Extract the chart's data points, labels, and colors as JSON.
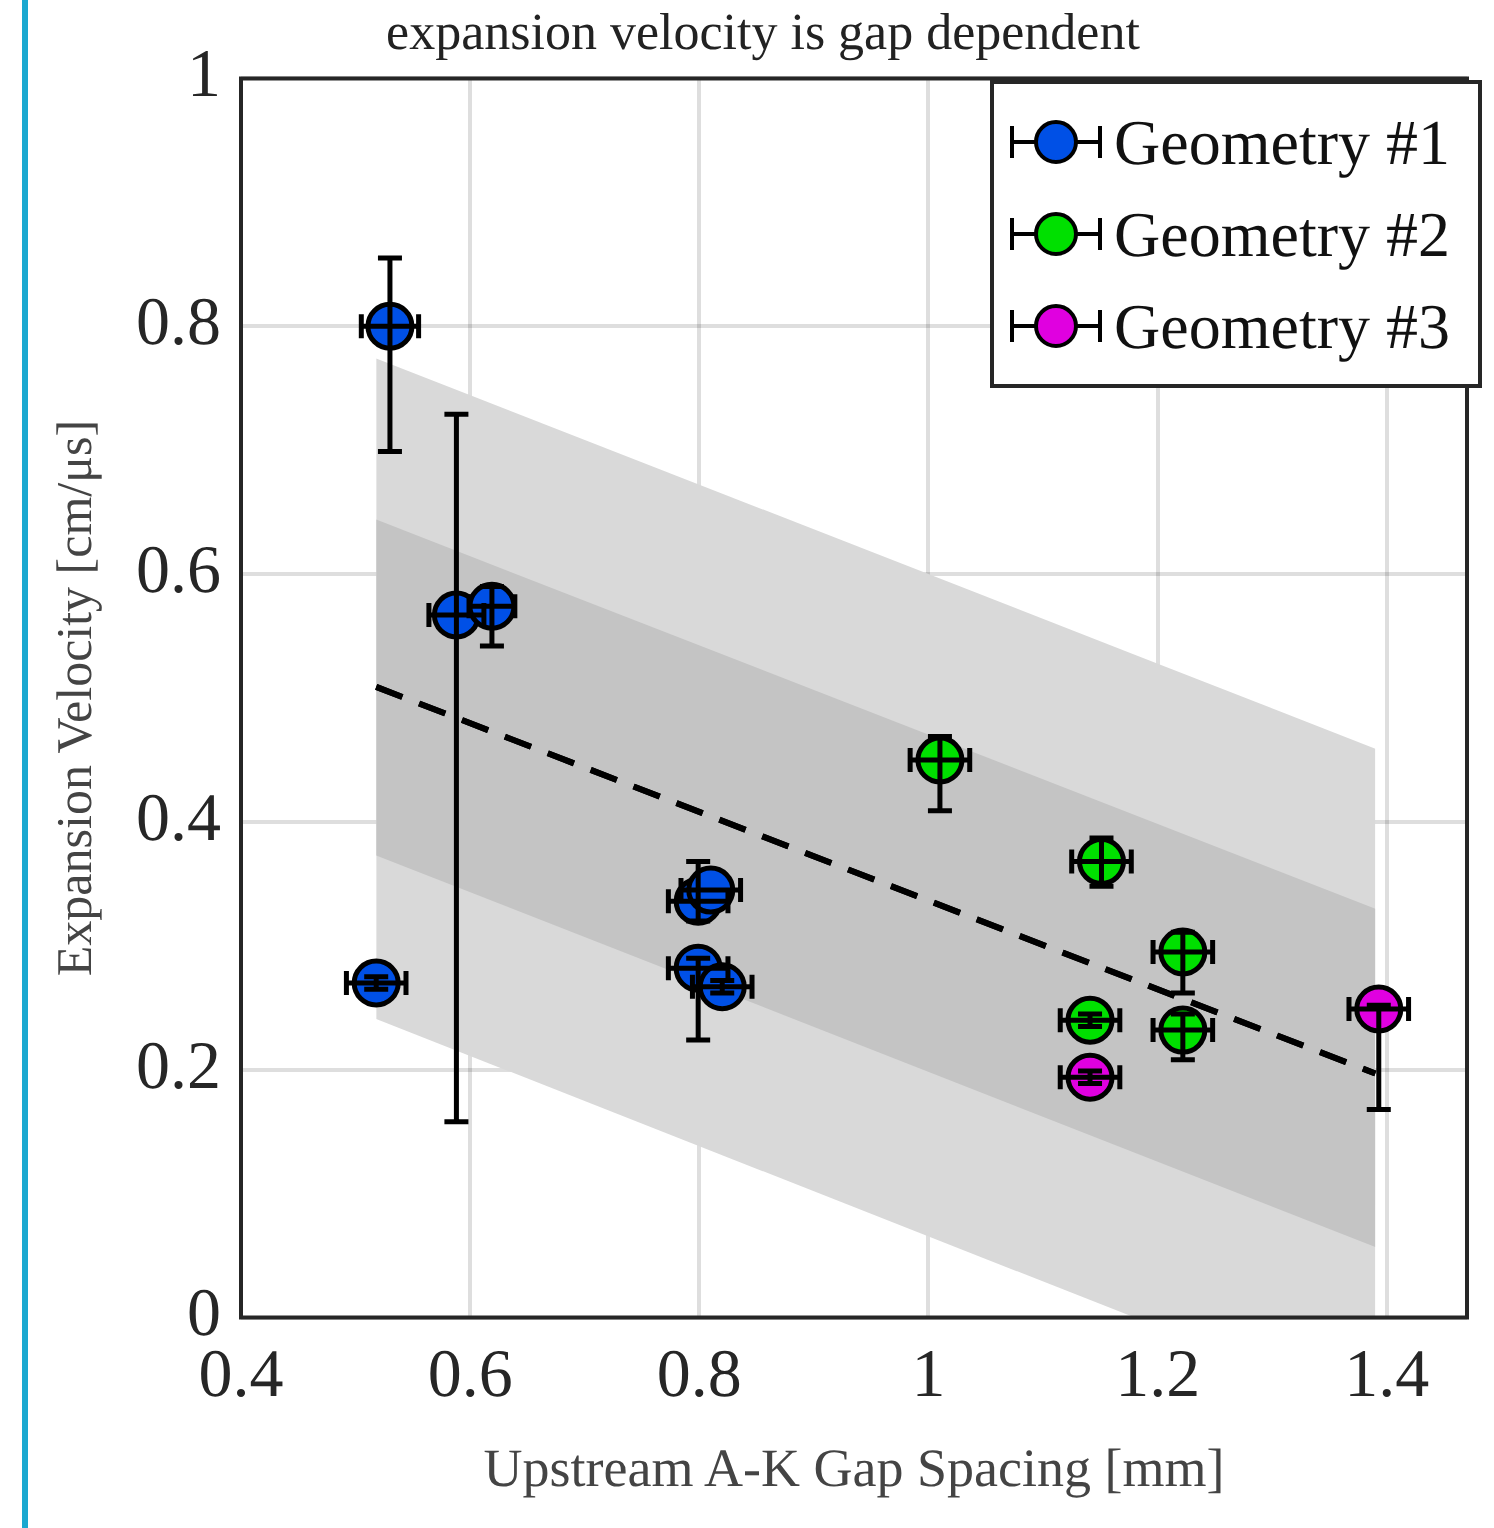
{
  "chart_data": {
    "type": "scatter",
    "title": "expansion velocity is gap dependent",
    "xlabel": "Upstream A-K Gap Spacing [mm]",
    "ylabel": "Expansion Velocity [cm/μs]",
    "xlim": [
      0.4,
      1.47
    ],
    "xticks": [
      0.4,
      0.6,
      0.8,
      1,
      1.2,
      1.4
    ],
    "ylim": [
      0,
      1
    ],
    "yticks": [
      0,
      0.2,
      0.4,
      0.6,
      0.8,
      1
    ],
    "grid": true,
    "legend": "top right",
    "series": [
      {
        "type": "line",
        "line_style": "dashed",
        "color": "#000000",
        "x": [
          0.518,
          1.18,
          1.39
        ],
        "values": [
          0.509,
          0.272,
          0.197
        ],
        "lower": [
          0.241,
          0,
          0
        ],
        "upper": [
          0.774,
          0.535,
          0.459
        ]
      },
      {
        "type": "line",
        "line_style": "dashed",
        "color": "#000000",
        "x": [
          0.518,
          1.39
        ],
        "values": [
          0.509,
          0.197
        ],
        "lower": [
          0.373,
          0.057
        ],
        "upper": [
          0.644,
          0.33
        ]
      },
      {
        "name": "Geometry #1",
        "marker": "circle",
        "color": "#0050e6",
        "x": [
          0.53,
          0.588,
          0.619,
          0.518,
          0.799,
          0.81,
          0.799,
          0.82
        ],
        "values": [
          0.8,
          0.567,
          0.574,
          0.27,
          0.336,
          0.345,
          0.282,
          0.267
        ],
        "errors": [
          [
            0.699,
            0.855
          ],
          [
            0.158,
            0.729
          ],
          [
            0.542,
            0.59
          ],
          [
            0.265,
            0.275
          ],
          [
            0.32,
            0.368
          ],
          null,
          [
            0.224,
            0.29
          ],
          [
            0.262,
            0.272
          ]
        ],
        "xerrors": [
          0.025,
          0.024,
          0.02,
          0.026,
          0.026,
          0.026,
          0.026,
          0.026
        ]
      },
      {
        "name": "Geometry #2",
        "marker": "circle",
        "color": "#00e000",
        "x": [
          1.01,
          1.151,
          1.222,
          1.141,
          1.222
        ],
        "values": [
          0.45,
          0.368,
          0.295,
          0.24,
          0.232
        ],
        "errors": [
          [
            0.409,
            0.469
          ],
          [
            0.348,
            0.387
          ],
          [
            0.262,
            0.311
          ],
          [
            0.235,
            0.245
          ],
          [
            0.208,
            0.245
          ]
        ],
        "xerrors": [
          0.026,
          0.026,
          0.026,
          0.026,
          0.026
        ]
      },
      {
        "name": "Geometry #3",
        "marker": "circle",
        "color": "#e000e0",
        "x": [
          1.141,
          1.393
        ],
        "values": [
          0.194,
          0.249
        ],
        "errors": [
          [
            0.189,
            0.199
          ],
          [
            0.168,
            0.252
          ]
        ],
        "xerrors": [
          0.026,
          0.026
        ]
      }
    ]
  }
}
